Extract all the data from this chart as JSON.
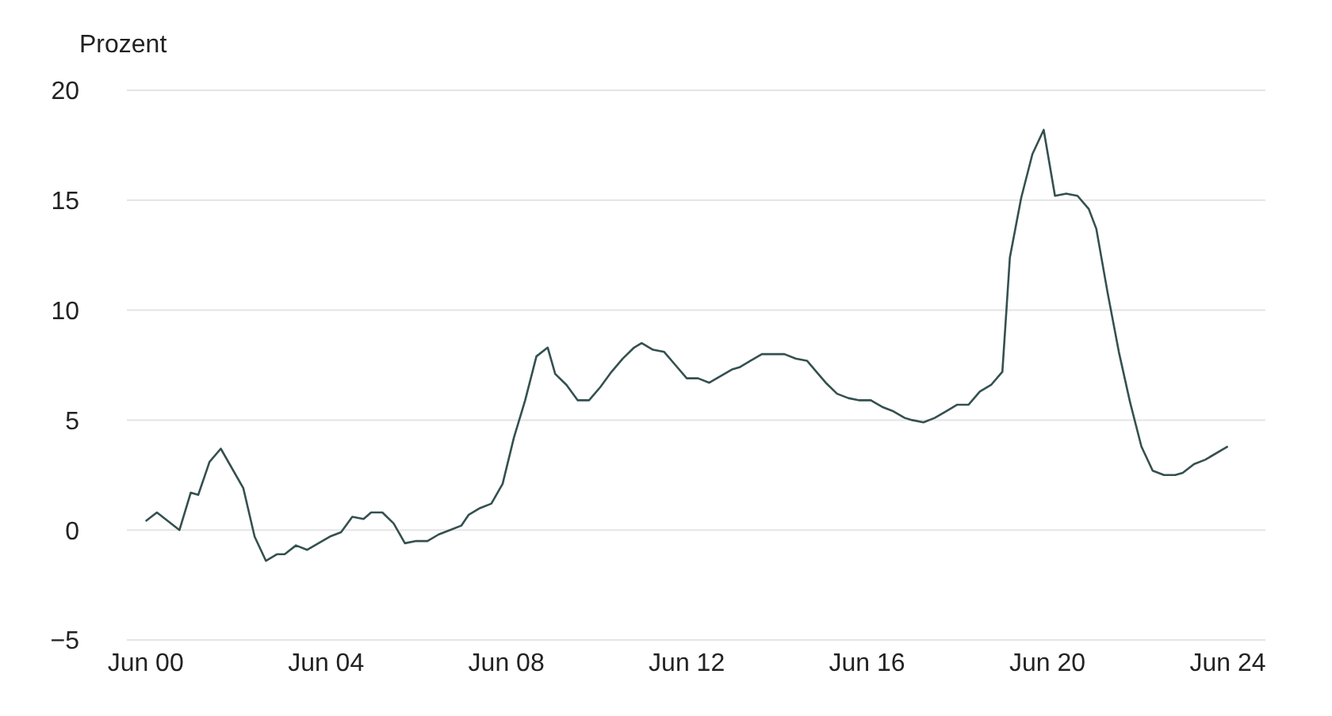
{
  "chart_data": {
    "type": "line",
    "ylabel": "Prozent",
    "x": [
      "2000-06",
      "2000-09",
      "2001-03",
      "2001-06",
      "2001-08",
      "2001-11",
      "2002-02",
      "2002-08",
      "2002-11",
      "2003-02",
      "2003-05",
      "2003-07",
      "2003-10",
      "2004-01",
      "2004-04",
      "2004-07",
      "2004-10",
      "2005-01",
      "2005-04",
      "2005-06",
      "2005-09",
      "2005-12",
      "2006-03",
      "2006-06",
      "2006-09",
      "2006-12",
      "2007-03",
      "2007-06",
      "2007-08",
      "2007-11",
      "2008-02",
      "2008-05",
      "2008-08",
      "2008-11",
      "2009-02",
      "2009-05",
      "2009-07",
      "2009-10",
      "2010-01",
      "2010-04",
      "2010-07",
      "2010-10",
      "2011-01",
      "2011-04",
      "2011-06",
      "2011-09",
      "2011-12",
      "2012-03",
      "2012-06",
      "2012-09",
      "2012-12",
      "2013-03",
      "2013-06",
      "2013-08",
      "2013-11",
      "2014-02",
      "2014-05",
      "2014-08",
      "2014-11",
      "2015-02",
      "2015-05",
      "2015-07",
      "2015-10",
      "2016-01",
      "2016-04",
      "2016-07",
      "2016-10",
      "2017-01",
      "2017-04",
      "2017-06",
      "2017-09",
      "2017-12",
      "2018-03",
      "2018-06",
      "2018-09",
      "2018-12",
      "2019-03",
      "2019-06",
      "2019-08",
      "2019-11",
      "2020-02",
      "2020-05",
      "2020-08",
      "2020-11",
      "2021-02",
      "2021-05",
      "2021-07",
      "2021-10",
      "2022-01",
      "2022-04",
      "2022-07",
      "2022-10",
      "2023-01",
      "2023-04",
      "2023-06",
      "2023-09",
      "2023-12",
      "2024-06"
    ],
    "series": [
      {
        "color": "#34504f",
        "values": [
          0.4,
          0.8,
          0.0,
          1.7,
          1.6,
          3.1,
          3.7,
          1.9,
          -0.3,
          -1.4,
          -1.1,
          -1.1,
          -0.7,
          -0.9,
          -0.6,
          -0.3,
          -0.1,
          0.6,
          0.5,
          0.8,
          0.8,
          0.3,
          -0.6,
          -0.5,
          -0.5,
          -0.2,
          0.0,
          0.2,
          0.7,
          1.0,
          1.2,
          2.1,
          4.2,
          5.9,
          7.9,
          8.3,
          7.1,
          6.6,
          5.9,
          5.9,
          6.5,
          7.2,
          7.8,
          8.3,
          8.5,
          8.2,
          8.1,
          7.5,
          6.9,
          6.9,
          6.7,
          7.0,
          7.3,
          7.4,
          7.7,
          8.0,
          8.0,
          8.0,
          7.8,
          7.7,
          7.1,
          6.7,
          6.2,
          6.0,
          5.9,
          5.9,
          5.6,
          5.4,
          5.1,
          5.0,
          4.9,
          5.1,
          5.4,
          5.7,
          5.7,
          6.3,
          6.6,
          7.2,
          12.4,
          15.1,
          17.1,
          18.2,
          15.2,
          15.3,
          15.2,
          14.6,
          13.7,
          10.8,
          8.1,
          5.8,
          3.8,
          2.7,
          2.5,
          2.5,
          2.6,
          3.0,
          3.2,
          3.8
        ]
      }
    ],
    "xlim": [
      "2000-01",
      "2025-04"
    ],
    "xticks": [
      {
        "value": "2000-06",
        "label": "Jun 00"
      },
      {
        "value": "2004-06",
        "label": "Jun 04"
      },
      {
        "value": "2008-06",
        "label": "Jun 08"
      },
      {
        "value": "2012-06",
        "label": "Jun 12"
      },
      {
        "value": "2016-06",
        "label": "Jun 16"
      },
      {
        "value": "2020-06",
        "label": "Jun 20"
      },
      {
        "value": "2024-06",
        "label": "Jun 24"
      }
    ],
    "ylim": [
      -5,
      20
    ],
    "yticks": [
      {
        "value": -5,
        "label": "−5"
      },
      0,
      5,
      10,
      15,
      20
    ],
    "grid": "y",
    "legend": false,
    "marker": "none",
    "line_style": "solid"
  }
}
